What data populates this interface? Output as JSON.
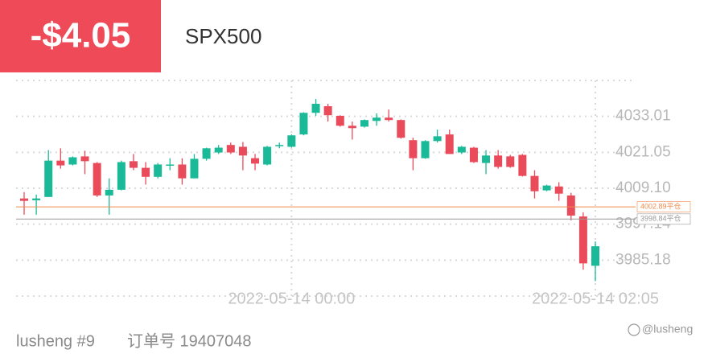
{
  "header": {
    "pnl": "-$4.05",
    "symbol": "SPX500"
  },
  "footer": {
    "account": "lusheng #9",
    "order": "订单号 19407048",
    "watermark": "@lusheng"
  },
  "chart_data": {
    "type": "candlestick",
    "up_color": "#1ab998",
    "down_color": "#ea4b5b",
    "categories": [
      null,
      null,
      null,
      null,
      null,
      null,
      null,
      null,
      null,
      null,
      null,
      null,
      null,
      null,
      null,
      null,
      null,
      null,
      null,
      null,
      null,
      null,
      "2022-05-14 00:00",
      null,
      null,
      null,
      null,
      null,
      null,
      null,
      null,
      null,
      null,
      null,
      null,
      null,
      null,
      null,
      null,
      null,
      null,
      null,
      null,
      null,
      null,
      null,
      null,
      "2022-05-14 02:05"
    ],
    "open": [
      4005.7,
      4005.1,
      4006.2,
      4018.3,
      4017.0,
      4019.7,
      4017.5,
      4006.7,
      4008.6,
      4018.1,
      4015.9,
      4012.9,
      4017.0,
      4017.0,
      4012.4,
      4018.9,
      4021.0,
      4023.5,
      4022.9,
      4019.1,
      4017.0,
      4023.2,
      4022.9,
      4027.0,
      4034.2,
      4036.4,
      4033.2,
      4029.9,
      4029.6,
      4031.5,
      4032.6,
      4031.8,
      4025.1,
      4019.1,
      4024.8,
      4027.0,
      4021.0,
      4022.6,
      4017.5,
      4020.0,
      4019.7,
      4020.2,
      4013.2,
      4008.4,
      4009.7,
      4006.7,
      3999.7,
      3983.3
    ],
    "high": [
      4007.8,
      4007.0,
      4021.8,
      4022.4,
      4019.7,
      4021.6,
      4017.8,
      4012.4,
      4018.3,
      4020.5,
      4017.8,
      4017.5,
      4019.1,
      4019.1,
      4020.5,
      4022.6,
      4023.5,
      4024.3,
      4024.5,
      4020.5,
      4023.2,
      4024.3,
      4027.0,
      4034.4,
      4038.8,
      4037.2,
      4033.4,
      4031.3,
      4032.0,
      4034.0,
      4035.3,
      4032.0,
      4025.9,
      4025.1,
      4028.6,
      4028.6,
      4023.2,
      4022.9,
      4021.8,
      4021.8,
      4020.2,
      4020.5,
      4015.1,
      4010.3,
      4011.1,
      4007.6,
      4001.1,
      3991.4
    ],
    "low": [
      4000.3,
      4000.3,
      4006.2,
      4015.6,
      4016.7,
      4013.8,
      4006.2,
      4000.3,
      4008.4,
      4015.1,
      4010.3,
      4012.4,
      4015.1,
      4010.3,
      4012.4,
      4018.3,
      4020.5,
      4020.5,
      4015.1,
      4015.1,
      4016.7,
      4022.4,
      4022.6,
      4026.7,
      4033.2,
      4031.3,
      4029.6,
      4025.3,
      4029.3,
      4029.9,
      4031.3,
      4025.6,
      4015.1,
      4018.9,
      4024.3,
      4020.5,
      4020.5,
      4017.5,
      4013.8,
      4015.6,
      4015.9,
      4013.0,
      4005.7,
      4008.1,
      4004.9,
      3998.4,
      3982.0,
      3978.2
    ],
    "close": [
      4004.9,
      4005.7,
      4018.3,
      4016.7,
      4019.4,
      4018.1,
      4006.7,
      4008.6,
      4017.8,
      4015.9,
      4012.9,
      4017.0,
      4017.0,
      4012.4,
      4018.9,
      4022.4,
      4022.6,
      4021.0,
      4020.0,
      4017.3,
      4022.9,
      4023.5,
      4026.7,
      4034.2,
      4037.2,
      4033.4,
      4029.9,
      4029.1,
      4031.8,
      4032.6,
      4031.8,
      4025.9,
      4019.1,
      4024.8,
      4026.4,
      4020.5,
      4022.9,
      4017.8,
      4020.0,
      4016.2,
      4016.2,
      4013.2,
      4008.1,
      4010.0,
      4007.3,
      4000.0,
      3984.1,
      3989.8
    ],
    "ylim": [
      3973.22,
      4044.97
    ],
    "yticks": [
      4033.01,
      4021.05,
      {
        "value": 4009.1,
        "label": "4009.10"
      },
      3997.14,
      3985.18
    ],
    "grid": true,
    "price_lines": [
      {
        "value": 4002.89,
        "label": "4002.89平仓",
        "color": "#f08a4b"
      },
      {
        "value": 3998.84,
        "label": "3998.84平仓",
        "color": "#9a9a9a"
      }
    ]
  }
}
